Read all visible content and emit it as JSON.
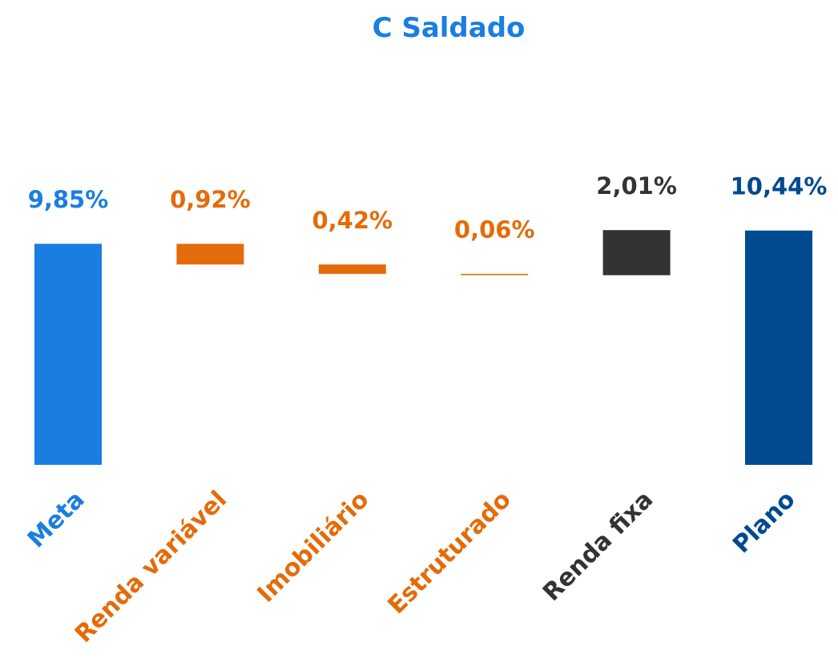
{
  "chart_data": {
    "type": "waterfall",
    "title": "C Saldado",
    "categories": [
      "Meta",
      "Renda variável",
      "Imobiliário",
      "Estruturado",
      "Renda fixa",
      "Plano"
    ],
    "values": [
      9.85,
      -0.92,
      -0.42,
      -0.06,
      2.01,
      10.44
    ],
    "value_labels": [
      "9,85%",
      "0,92%",
      "0,42%",
      "0,06%",
      "2,01%",
      "10,44%"
    ],
    "colors": [
      "#1a7ee0",
      "#e36c0a",
      "#e36c0a",
      "#e36c0a",
      "#333333",
      "#004a8f"
    ],
    "ylim": [
      0,
      12.5
    ]
  }
}
